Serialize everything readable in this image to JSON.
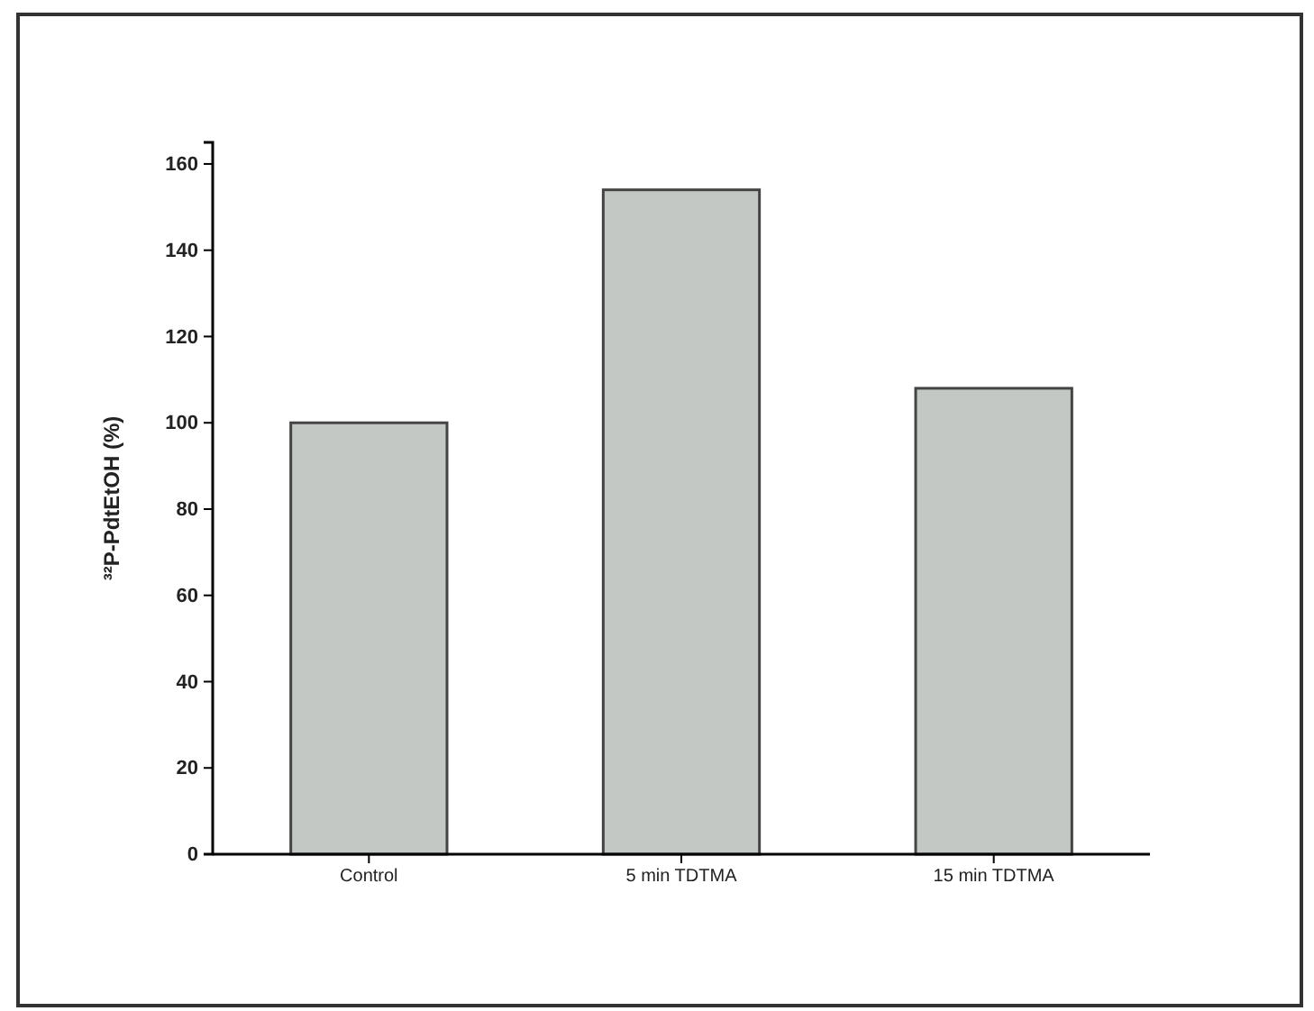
{
  "chart_data": {
    "type": "bar",
    "ylabel": "³²P-PdtEtOH (%)",
    "categories": [
      "Control",
      "5 min TDTMA",
      "15 min TDTMA"
    ],
    "values": [
      100,
      154,
      108
    ],
    "color": "#c4c8c4",
    "ylim": [
      0,
      165
    ],
    "yticks": [
      0,
      20,
      40,
      60,
      80,
      100,
      120,
      140,
      160
    ],
    "grid": false
  }
}
